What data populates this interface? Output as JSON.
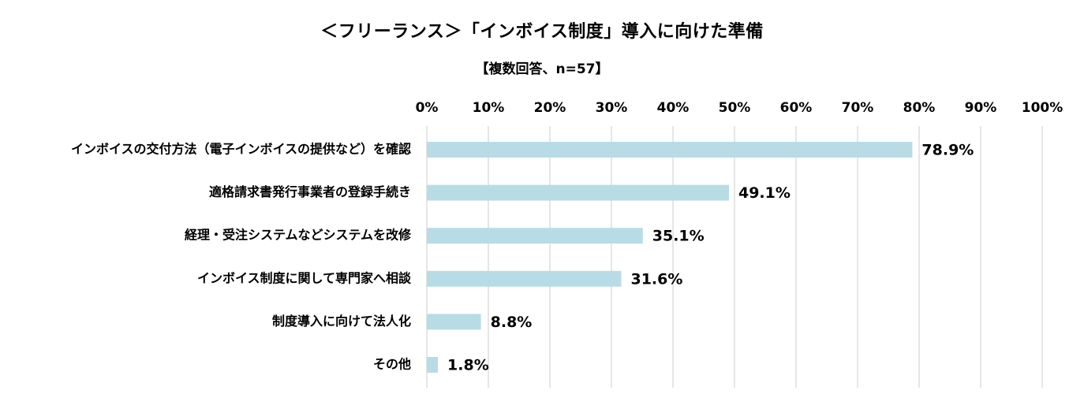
{
  "chart_data": {
    "type": "bar",
    "orientation": "horizontal",
    "title": "＜フリーランス＞「インボイス制度」導入に向けた準備",
    "subtitle": "【複数回答、n=57】",
    "categories": [
      "インボイスの交付方法（電子インボイスの提供など）を確認",
      "適格請求書発行事業者の登録手続き",
      "経理・受注システムなどシステムを改修",
      "インボイス制度に関して専門家へ相談",
      "制度導入に向けて法人化",
      "その他"
    ],
    "values": [
      78.9,
      49.1,
      35.1,
      31.6,
      8.8,
      1.8
    ],
    "value_labels": [
      "78.9%",
      "49.1%",
      "35.1%",
      "31.6%",
      "8.8%",
      "1.8%"
    ],
    "xlim": [
      0,
      100
    ],
    "ticks": [
      0,
      10,
      20,
      30,
      40,
      50,
      60,
      70,
      80,
      90,
      100
    ],
    "tick_labels": [
      "0%",
      "10%",
      "20%",
      "30%",
      "40%",
      "50%",
      "60%",
      "70%",
      "80%",
      "90%",
      "100%"
    ],
    "axis_position": "top",
    "grid": true,
    "legend": "none",
    "bar_color": "#b8dce6",
    "grid_color": "#d9d9d9"
  }
}
